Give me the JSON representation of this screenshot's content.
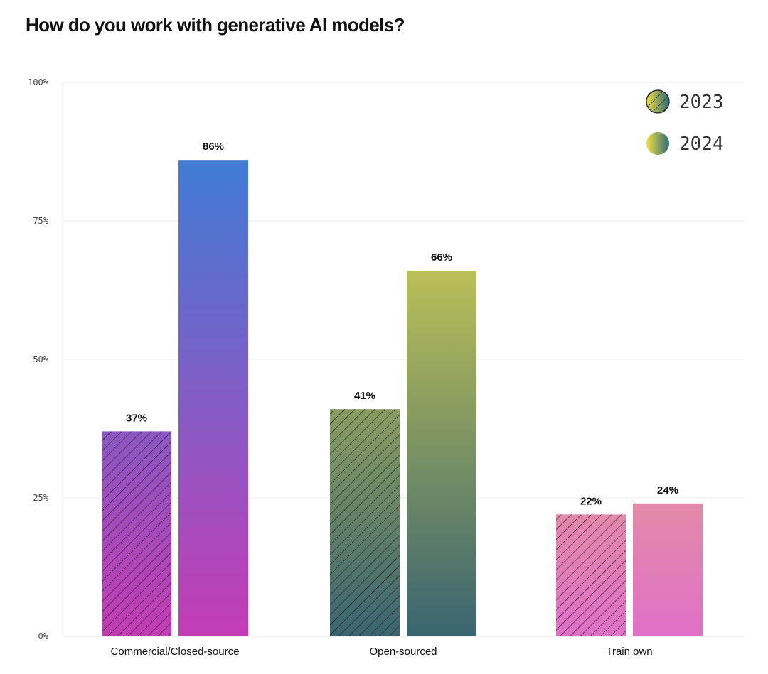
{
  "chart_data": {
    "type": "bar",
    "title": "How do you work with generative AI models?",
    "categories": [
      "Commercial/Closed-source",
      "Open-sourced",
      "Train own"
    ],
    "series": [
      {
        "name": "2023",
        "values": [
          37,
          41,
          22
        ],
        "style": "hatched"
      },
      {
        "name": "2024",
        "values": [
          86,
          66,
          24
        ],
        "style": "solid"
      }
    ],
    "value_labels": {
      "2023": [
        "37%",
        "41%",
        "22%"
      ],
      "2024": [
        "86%",
        "66%",
        "24%"
      ]
    },
    "ylim": [
      0,
      100
    ],
    "yticks": [
      0,
      25,
      50,
      75,
      100
    ],
    "ytick_labels": [
      "0%",
      "25%",
      "50%",
      "75%",
      "100%"
    ],
    "xlabel": "",
    "ylabel": "",
    "grid": true,
    "legend_position": "top-right",
    "category_colors": [
      {
        "top": "#3a7fd6",
        "bottom": "#c43cb4"
      },
      {
        "top": "#e8e04e",
        "bottom": "#3a6470"
      },
      {
        "top": "#ecd24e",
        "bottom": "#e070c8"
      }
    ],
    "legend_swatch_colors": {
      "left": "#f0e040",
      "right": "#2e6a7e"
    }
  }
}
